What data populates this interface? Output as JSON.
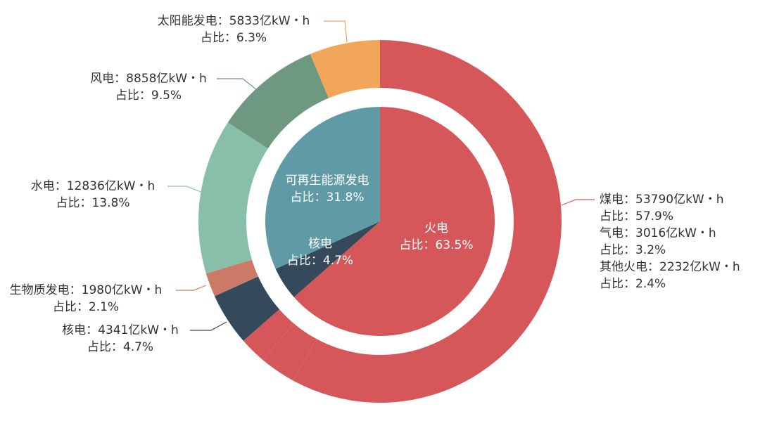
{
  "chart_data": {
    "type": "pie",
    "series": [
      {
        "categories": [
          "火电",
          "核电",
          "可再生能源发电"
        ],
        "values": [
          63.5,
          4.7,
          31.8
        ],
        "value_labels": [
          "占比：63.5%",
          "占比：4.7%",
          "占比：31.8%"
        ],
        "colors": [
          "#d6575a",
          "#344a5a",
          "#5f9aa6"
        ]
      },
      {
        "categories": [
          "煤电",
          "气电",
          "其他火电",
          "核电",
          "生物质发电",
          "水电",
          "风电",
          "太阳能发电"
        ],
        "values": [
          53790,
          3016,
          2232,
          4341,
          1980,
          12836,
          8858,
          5833
        ],
        "value_labels": [
          "：53790亿kW・h",
          "：3016亿kW・h",
          "：2232亿kW・h",
          "：4341亿kW・h",
          "：1980亿kW・h",
          "：12836亿kW・h",
          "：8858亿kW・h",
          "：5833亿kW・h"
        ],
        "shares": [
          57.9,
          3.2,
          2.4,
          4.7,
          2.1,
          13.8,
          9.5,
          6.3
        ],
        "share_labels": [
          "占比：57.9%",
          "占比：3.2%",
          "占比：2.4%",
          "占比：4.7%",
          "占比：2.1%",
          "占比：13.8%",
          "占比：9.5%",
          "占比：6.3%"
        ],
        "colors": [
          "#d6575a",
          "#d6575a",
          "#d6575a",
          "#344a5a",
          "#cc7a67",
          "#88bfa8",
          "#6f9880",
          "#f2a659"
        ]
      }
    ]
  }
}
